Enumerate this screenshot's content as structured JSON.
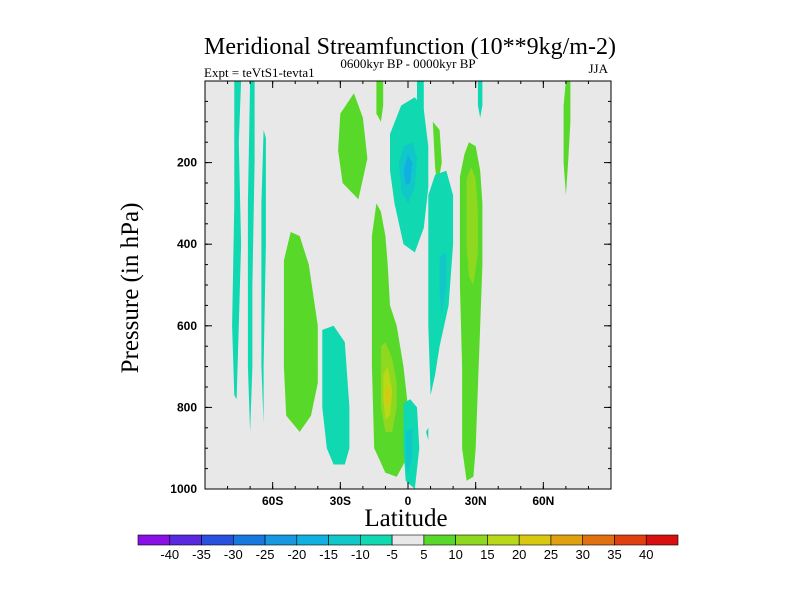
{
  "chart_data": {
    "type": "heatmap",
    "subtype": "filled-contour",
    "title": "Meridional Streamfunction (10**9kg/m-2)",
    "experiment_label": "Expt = teVtS1-tevta1",
    "period_label": "0600kyr BP - 0000kyr BP",
    "season_label": "JJA",
    "xlabel": "Latitude",
    "ylabel": "Pressure (in hPa)",
    "xlim": [
      -90,
      90
    ],
    "ylim": [
      1000,
      0
    ],
    "xticks": [
      {
        "value": -60,
        "label": "60S"
      },
      {
        "value": -30,
        "label": "30S"
      },
      {
        "value": 0,
        "label": "0"
      },
      {
        "value": 30,
        "label": "30N"
      },
      {
        "value": 60,
        "label": "60N"
      }
    ],
    "yticks": [
      {
        "value": 200,
        "label": "200"
      },
      {
        "value": 400,
        "label": "400"
      },
      {
        "value": 600,
        "label": "600"
      },
      {
        "value": 800,
        "label": "800"
      },
      {
        "value": 1000,
        "label": "1000"
      }
    ],
    "background_color": "#e8e8e8",
    "colorbar": {
      "labels": [
        "-40",
        "-35",
        "-30",
        "-25",
        "-20",
        "-15",
        "-10",
        "-5",
        "5",
        "10",
        "15",
        "20",
        "25",
        "30",
        "35",
        "40"
      ],
      "colors": [
        "#8a10e8",
        "#5a28e0",
        "#2a50e0",
        "#1878e0",
        "#1898e0",
        "#10b0e0",
        "#10c8c8",
        "#10d8b0",
        "#e8e8e8",
        "#58d828",
        "#8ed820",
        "#b8d818",
        "#d8c810",
        "#e0a010",
        "#e07010",
        "#e04010",
        "#d81010"
      ]
    },
    "regions": [
      {
        "level": "-5",
        "points": [
          [
            -77,
            0
          ],
          [
            -74,
            0
          ],
          [
            -75,
            150
          ],
          [
            -74,
            400
          ],
          [
            -75,
            600
          ],
          [
            -76,
            780
          ],
          [
            -77,
            770
          ],
          [
            -78,
            600
          ],
          [
            -77,
            300
          ]
        ]
      },
      {
        "level": "-5",
        "points": [
          [
            -70,
            0
          ],
          [
            -68,
            0
          ],
          [
            -68,
            200
          ],
          [
            -69,
            500
          ],
          [
            -69,
            700
          ],
          [
            -70,
            860
          ],
          [
            -71,
            700
          ],
          [
            -71,
            300
          ]
        ]
      },
      {
        "level": "-5",
        "points": [
          [
            -64,
            120
          ],
          [
            -63,
            140
          ],
          [
            -63,
            400
          ],
          [
            -64,
            700
          ],
          [
            -64,
            840
          ],
          [
            -65,
            700
          ],
          [
            -65,
            300
          ]
        ]
      },
      {
        "level": "-5",
        "points": [
          [
            -28,
            155
          ],
          [
            -25,
            180
          ],
          [
            -27,
            230
          ],
          [
            -29,
            190
          ]
        ]
      },
      {
        "level": "-5",
        "points": [
          [
            -38,
            610
          ],
          [
            -33,
            600
          ],
          [
            -28,
            640
          ],
          [
            -27,
            720
          ],
          [
            -26,
            800
          ],
          [
            -26,
            900
          ],
          [
            -28,
            940
          ],
          [
            -33,
            940
          ],
          [
            -36,
            900
          ],
          [
            -38,
            800
          ]
        ]
      },
      {
        "level": "5",
        "points": [
          [
            -55,
            440
          ],
          [
            -52,
            370
          ],
          [
            -48,
            380
          ],
          [
            -44,
            450
          ],
          [
            -40,
            600
          ],
          [
            -40,
            740
          ],
          [
            -43,
            820
          ],
          [
            -48,
            860
          ],
          [
            -54,
            820
          ],
          [
            -55,
            700
          ]
        ]
      },
      {
        "level": "5",
        "points": [
          [
            -16,
            380
          ],
          [
            -14,
            300
          ],
          [
            -12,
            320
          ],
          [
            -10,
            380
          ],
          [
            -9,
            450
          ],
          [
            -8,
            550
          ],
          [
            -5,
            600
          ],
          [
            -2,
            700
          ],
          [
            0,
            800
          ],
          [
            -1,
            930
          ],
          [
            -5,
            970
          ],
          [
            -10,
            960
          ],
          [
            -15,
            900
          ],
          [
            -16,
            700
          ],
          [
            -16,
            500
          ]
        ]
      },
      {
        "level": "10",
        "points": [
          [
            -12,
            650
          ],
          [
            -10,
            640
          ],
          [
            -7,
            680
          ],
          [
            -5,
            740
          ],
          [
            -5,
            800
          ],
          [
            -7,
            860
          ],
          [
            -10,
            860
          ],
          [
            -12,
            800
          ]
        ]
      },
      {
        "level": "15",
        "points": [
          [
            -11,
            720
          ],
          [
            -9,
            700
          ],
          [
            -7,
            760
          ],
          [
            -8,
            820
          ],
          [
            -10,
            830
          ],
          [
            -11,
            780
          ]
        ]
      },
      {
        "level": "20",
        "points": [
          [
            -10,
            755
          ],
          [
            -8,
            750
          ],
          [
            -8,
            790
          ],
          [
            -10,
            795
          ]
        ]
      },
      {
        "level": "5",
        "points": [
          [
            -14,
            0
          ],
          [
            -11,
            0
          ],
          [
            -11,
            60
          ],
          [
            -12,
            100
          ],
          [
            -14,
            80
          ]
        ]
      },
      {
        "level": "5",
        "points": [
          [
            -30,
            80
          ],
          [
            -24,
            30
          ],
          [
            -20,
            90
          ],
          [
            -18,
            190
          ],
          [
            -22,
            290
          ],
          [
            -29,
            250
          ],
          [
            -31,
            170
          ]
        ]
      },
      {
        "level": "5",
        "points": [
          [
            23,
            235
          ],
          [
            25,
            180
          ],
          [
            27,
            150
          ],
          [
            30,
            160
          ],
          [
            32,
            220
          ],
          [
            33,
            300
          ],
          [
            33,
            450
          ],
          [
            32,
            600
          ],
          [
            31,
            750
          ],
          [
            30,
            900
          ],
          [
            29,
            970
          ],
          [
            26,
            980
          ],
          [
            24,
            900
          ],
          [
            24,
            700
          ],
          [
            23,
            500
          ]
        ]
      },
      {
        "level": "10",
        "points": [
          [
            26,
            240
          ],
          [
            28,
            210
          ],
          [
            30,
            240
          ],
          [
            31,
            320
          ],
          [
            31,
            420
          ],
          [
            29,
            500
          ],
          [
            27,
            480
          ],
          [
            26,
            400
          ]
        ]
      },
      {
        "level": "5",
        "points": [
          [
            11,
            100
          ],
          [
            14,
            120
          ],
          [
            15,
            200
          ],
          [
            13,
            260
          ],
          [
            12,
            210
          ]
        ]
      },
      {
        "level": "5",
        "points": [
          [
            70,
            0
          ],
          [
            72,
            0
          ],
          [
            72,
            100
          ],
          [
            71,
            200
          ],
          [
            70,
            280
          ],
          [
            69,
            200
          ],
          [
            69,
            60
          ]
        ]
      },
      {
        "level": "-5",
        "points": [
          [
            4,
            0
          ],
          [
            7,
            0
          ],
          [
            7,
            140
          ],
          [
            5,
            200
          ],
          [
            4,
            100
          ]
        ]
      },
      {
        "level": "-5",
        "points": [
          [
            -8,
            130
          ],
          [
            -3,
            60
          ],
          [
            3,
            40
          ],
          [
            7,
            70
          ],
          [
            9,
            160
          ],
          [
            9,
            260
          ],
          [
            7,
            360
          ],
          [
            3,
            420
          ],
          [
            -2,
            400
          ],
          [
            -6,
            300
          ],
          [
            -8,
            220
          ]
        ]
      },
      {
        "level": "-10",
        "points": [
          [
            -4,
            200
          ],
          [
            -2,
            160
          ],
          [
            2,
            150
          ],
          [
            4,
            190
          ],
          [
            3,
            260
          ],
          [
            0,
            300
          ],
          [
            -3,
            270
          ]
        ]
      },
      {
        "level": "-15",
        "points": [
          [
            -2,
            220
          ],
          [
            0,
            180
          ],
          [
            2,
            200
          ],
          [
            1,
            250
          ],
          [
            -1,
            255
          ]
        ]
      },
      {
        "level": "-5",
        "points": [
          [
            9,
            280
          ],
          [
            12,
            230
          ],
          [
            17,
            220
          ],
          [
            20,
            280
          ],
          [
            20,
            400
          ],
          [
            18,
            550
          ],
          [
            14,
            650
          ],
          [
            12,
            720
          ],
          [
            10,
            770
          ],
          [
            9,
            600
          ],
          [
            9,
            450
          ]
        ]
      },
      {
        "level": "-10",
        "points": [
          [
            14,
            430
          ],
          [
            17,
            420
          ],
          [
            17,
            500
          ],
          [
            15,
            570
          ],
          [
            14,
            520
          ]
        ]
      },
      {
        "level": "-5",
        "points": [
          [
            -2,
            790
          ],
          [
            1,
            780
          ],
          [
            4,
            800
          ],
          [
            5,
            900
          ],
          [
            3,
            1000
          ],
          [
            -1,
            980
          ],
          [
            -2,
            900
          ]
        ]
      },
      {
        "level": "-10",
        "points": [
          [
            -1,
            860
          ],
          [
            2,
            850
          ],
          [
            2,
            920
          ],
          [
            0,
            960
          ],
          [
            -1,
            940
          ]
        ]
      },
      {
        "level": "-5",
        "points": [
          [
            8,
            860
          ],
          [
            9,
            850
          ],
          [
            9,
            880
          ]
        ]
      },
      {
        "level": "-5",
        "points": [
          [
            31,
            0
          ],
          [
            33,
            0
          ],
          [
            33,
            60
          ],
          [
            32,
            90
          ],
          [
            31,
            60
          ]
        ]
      }
    ]
  }
}
